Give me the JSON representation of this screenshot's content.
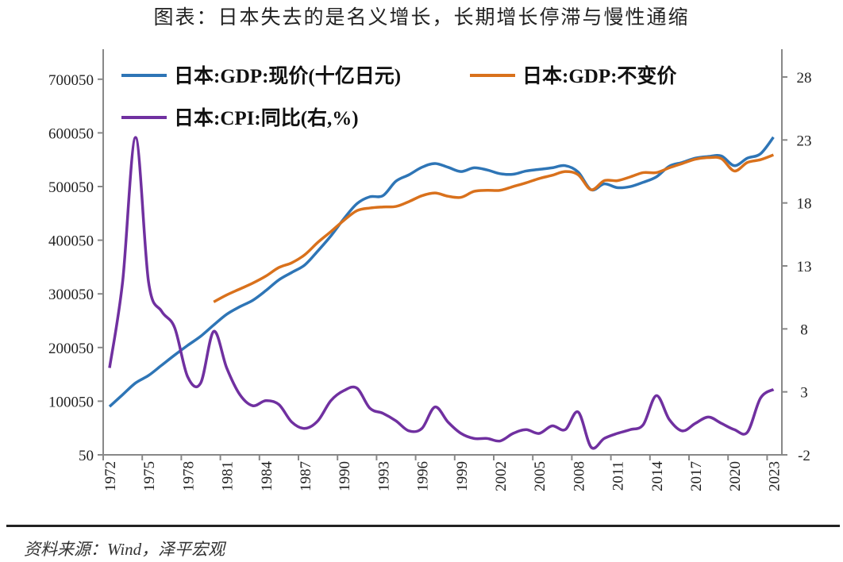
{
  "title": "图表：日本失去的是名义增长，长期增长停滞与慢性通缩",
  "source": "资料来源：Wind，泽平宏观",
  "chart_data": {
    "type": "line",
    "title": "图表：日本失去的是名义增长，长期增长停滞与慢性通缩",
    "x": [
      1972,
      1973,
      1974,
      1975,
      1976,
      1977,
      1978,
      1979,
      1980,
      1981,
      1982,
      1983,
      1984,
      1985,
      1986,
      1987,
      1988,
      1989,
      1990,
      1991,
      1992,
      1993,
      1994,
      1995,
      1996,
      1997,
      1998,
      1999,
      2000,
      2001,
      2002,
      2003,
      2004,
      2005,
      2006,
      2007,
      2008,
      2009,
      2010,
      2011,
      2012,
      2013,
      2014,
      2015,
      2016,
      2017,
      2018,
      2019,
      2020,
      2021,
      2022,
      2023
    ],
    "x_ticks": [
      "1972",
      "1975",
      "1978",
      "1981",
      "1984",
      "1987",
      "1990",
      "1993",
      "1996",
      "1999",
      "2002",
      "2005",
      "2008",
      "2011",
      "2014",
      "2017",
      "2020",
      "2023"
    ],
    "y_left": {
      "ticks": [
        "50",
        "100050",
        "200050",
        "300050",
        "400050",
        "500050",
        "600050",
        "700050"
      ],
      "range": [
        50,
        750050
      ]
    },
    "y_right": {
      "ticks": [
        "-2",
        "3",
        "8",
        "13",
        "18",
        "23",
        "28"
      ],
      "range": [
        -2,
        30
      ]
    },
    "grid": false,
    "legend_placement": "top",
    "series": [
      {
        "name": "日本:GDP:现价(十亿日元)",
        "axis": "left",
        "color": "#2E75B6",
        "values": [
          90000,
          112000,
          134000,
          148000,
          167000,
          186000,
          204000,
          221000,
          242000,
          262000,
          276000,
          288000,
          306000,
          326000,
          340000,
          354000,
          380000,
          408000,
          440000,
          468000,
          481000,
          483000,
          510000,
          522000,
          536000,
          543000,
          536000,
          528000,
          535000,
          531000,
          524000,
          523000,
          529000,
          532000,
          535000,
          539000,
          527000,
          494000,
          505000,
          498000,
          500000,
          508000,
          518000,
          538000,
          545000,
          553000,
          556000,
          557000,
          539000,
          553000,
          561000,
          592000
        ]
      },
      {
        "name": "日本:GDP:不变价",
        "axis": "left",
        "color": "#D9711C",
        "values": [
          null,
          null,
          null,
          null,
          null,
          null,
          null,
          null,
          285000,
          298000,
          309000,
          320000,
          333000,
          349000,
          358000,
          373000,
          396000,
          416000,
          437000,
          455000,
          460000,
          462000,
          463000,
          472000,
          483000,
          488000,
          482000,
          480000,
          491000,
          493000,
          493000,
          500000,
          507000,
          515000,
          521000,
          528000,
          522000,
          494000,
          511000,
          511000,
          518000,
          526000,
          526000,
          535000,
          543000,
          551000,
          554000,
          552000,
          529000,
          545000,
          550000,
          559000
        ]
      },
      {
        "name": "日本:CPI:同比(右,%)",
        "axis": "right",
        "color": "#7030A0",
        "values": [
          4.9,
          11.7,
          23.2,
          11.7,
          9.4,
          8.1,
          4.2,
          3.7,
          7.8,
          4.9,
          2.8,
          1.9,
          2.3,
          2.0,
          0.6,
          0.1,
          0.7,
          2.3,
          3.1,
          3.3,
          1.7,
          1.3,
          0.7,
          -0.1,
          0.1,
          1.8,
          0.6,
          -0.3,
          -0.7,
          -0.7,
          -0.9,
          -0.3,
          0.0,
          -0.3,
          0.3,
          0.0,
          1.4,
          -1.4,
          -0.7,
          -0.3,
          0.0,
          0.4,
          2.7,
          0.8,
          -0.1,
          0.5,
          1.0,
          0.5,
          0.0,
          -0.2,
          2.5,
          3.2
        ]
      }
    ]
  }
}
